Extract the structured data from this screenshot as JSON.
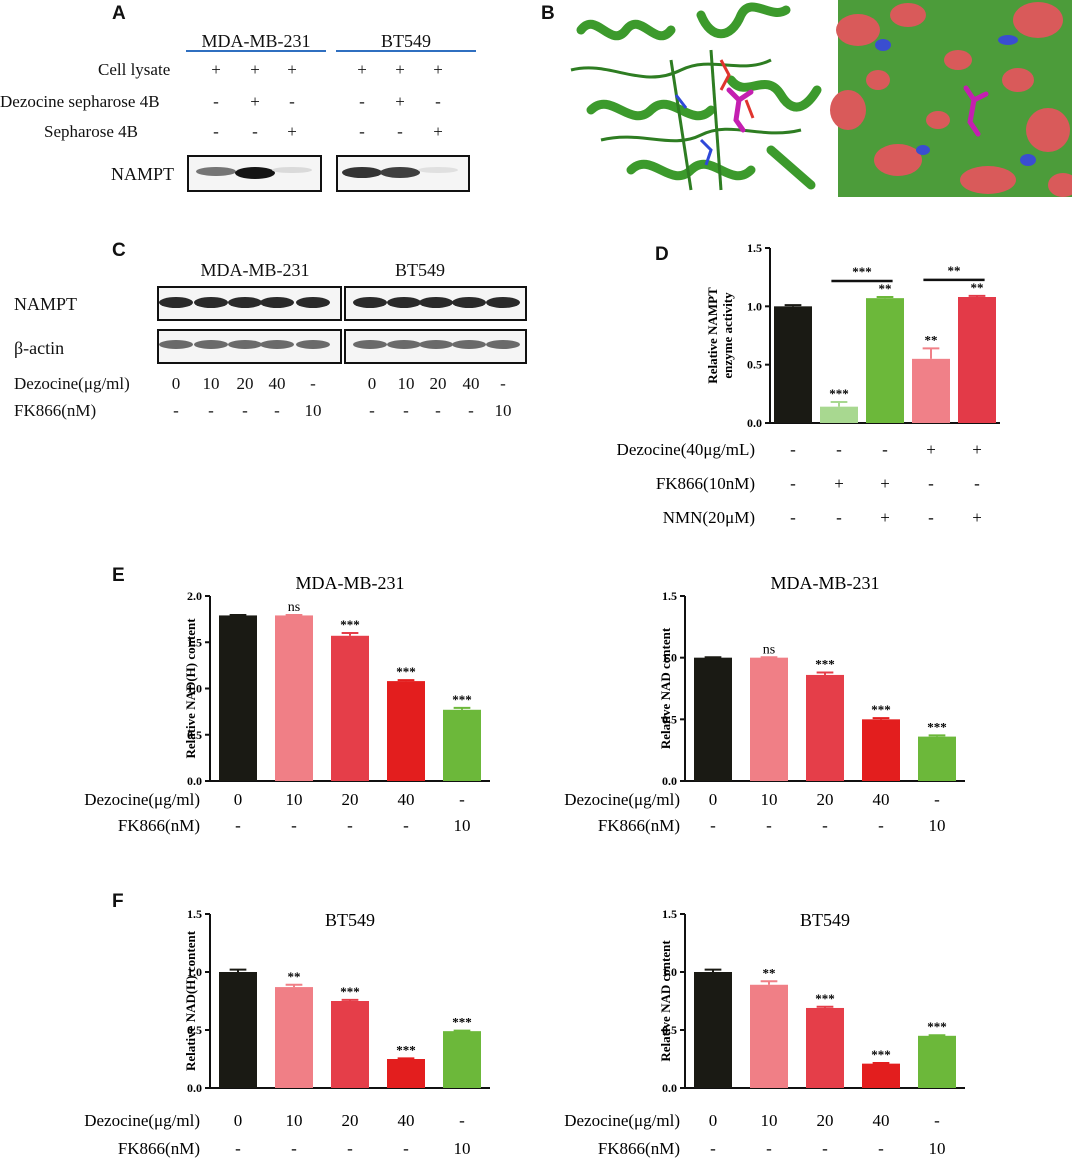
{
  "panels": {
    "a": {
      "label": "A",
      "cell1": "MDA-MB-231",
      "cell2": "BT549",
      "rows": [
        {
          "label": "Cell lysate",
          "marks": [
            "+",
            "+",
            "+",
            "+",
            "+",
            "+"
          ]
        },
        {
          "label": "Dezocine sepharose 4B",
          "marks": [
            "-",
            "+",
            "-",
            "-",
            "+",
            "-"
          ]
        },
        {
          "label": "Sepharose 4B",
          "marks": [
            "-",
            "-",
            "+",
            "-",
            "-",
            "+"
          ]
        }
      ],
      "blot_label": "NAMPT",
      "band_intensity": [
        0.55,
        1.0,
        0.08,
        0.85,
        0.8,
        0.05
      ]
    },
    "b": {
      "label": "B"
    },
    "c": {
      "label": "C",
      "cell1": "MDA-MB-231",
      "cell2": "BT549",
      "blots": [
        "NAMPT",
        "β-actin"
      ],
      "rows": [
        {
          "label": "Dezocine(μg/ml)",
          "marks": [
            "0",
            "10",
            "20",
            "40",
            "-",
            "0",
            "10",
            "20",
            "40",
            "-"
          ]
        },
        {
          "label": "FK866(nM)",
          "marks": [
            "-",
            "-",
            "-",
            "-",
            "10",
            "-",
            "-",
            "-",
            "-",
            "10"
          ]
        }
      ]
    },
    "d": {
      "label": "D"
    },
    "e": {
      "label": "E"
    },
    "f": {
      "label": "F"
    }
  },
  "chart_data": [
    {
      "id": "D",
      "type": "bar",
      "ylabel": "Relative NAMPT enzyme activity",
      "ylabel_lines": [
        "Relative NAMPT",
        "enzyme activity"
      ],
      "ylim": [
        0,
        1.5
      ],
      "yticks": [
        "0.0",
        "0.5",
        "1.0",
        "1.5"
      ],
      "values": [
        1.0,
        0.14,
        1.07,
        0.55,
        1.08
      ],
      "errors": [
        0.01,
        0.04,
        0.01,
        0.09,
        0.01
      ],
      "sig": [
        "",
        "***",
        "**",
        "**",
        "**"
      ],
      "brackets": [
        {
          "from": 1,
          "to": 2,
          "label": "***"
        },
        {
          "from": 3,
          "to": 4,
          "label": "**"
        }
      ],
      "colors": [
        "#1a1a14",
        "#a8d890",
        "#6cb83a",
        "#f08088",
        "#e33a48"
      ],
      "rows": [
        {
          "label": "Dezocine(40μg/mL)",
          "marks": [
            "-",
            "-",
            "-",
            "+",
            "+"
          ]
        },
        {
          "label": "FK866(10nM)",
          "marks": [
            "-",
            "+",
            "+",
            "-",
            "-"
          ]
        },
        {
          "label": "NMN(20μM)",
          "marks": [
            "-",
            "-",
            "+",
            "-",
            "+"
          ]
        }
      ]
    },
    {
      "id": "E1",
      "type": "bar",
      "title": "MDA-MB-231",
      "ylabel": "Relative NAD(H) content",
      "ylim": [
        0,
        2.0
      ],
      "yticks": [
        "0.0",
        "0.5",
        "1.0",
        "1.5",
        "2.0"
      ],
      "values": [
        1.79,
        1.79,
        1.57,
        1.08,
        0.77
      ],
      "errors": [
        0.005,
        0.005,
        0.03,
        0.01,
        0.02
      ],
      "sig": [
        "",
        "ns",
        "***",
        "***",
        "***"
      ],
      "colors": [
        "#1a1a14",
        "#f07f86",
        "#e53e49",
        "#e31e1e",
        "#6cb83a"
      ],
      "rows": [
        {
          "label": "Dezocine(μg/ml)",
          "marks": [
            "0",
            "10",
            "20",
            "40",
            "-"
          ]
        },
        {
          "label": "FK866(nM)",
          "marks": [
            "-",
            "-",
            "-",
            "-",
            "10"
          ]
        }
      ]
    },
    {
      "id": "E2",
      "type": "bar",
      "title": "MDA-MB-231",
      "ylabel": "Relative NAD content",
      "ylim": [
        0,
        1.5
      ],
      "yticks": [
        "0.0",
        "0.5",
        "1.0",
        "1.5"
      ],
      "values": [
        1.0,
        1.0,
        0.86,
        0.5,
        0.36
      ],
      "errors": [
        0.003,
        0.003,
        0.02,
        0.01,
        0.01
      ],
      "sig": [
        "",
        "ns",
        "***",
        "***",
        "***"
      ],
      "colors": [
        "#1a1a14",
        "#f07f86",
        "#e53e49",
        "#e31e1e",
        "#6cb83a"
      ],
      "rows": [
        {
          "label": "Dezocine(μg/ml)",
          "marks": [
            "0",
            "10",
            "20",
            "40",
            "-"
          ]
        },
        {
          "label": "FK866(nM)",
          "marks": [
            "-",
            "-",
            "-",
            "-",
            "10"
          ]
        }
      ]
    },
    {
      "id": "F1",
      "type": "bar",
      "title": "BT549",
      "ylabel": "Relative NAD(H) content",
      "ylim": [
        0,
        1.5
      ],
      "yticks": [
        "0.0",
        "0.5",
        "1.0",
        "1.5"
      ],
      "values": [
        1.0,
        0.87,
        0.75,
        0.25,
        0.49
      ],
      "errors": [
        0.02,
        0.02,
        0.01,
        0.005,
        0.005
      ],
      "sig": [
        "",
        "**",
        "***",
        "***",
        "***"
      ],
      "colors": [
        "#1a1a14",
        "#f07f86",
        "#e53e49",
        "#e31e1e",
        "#6cb83a"
      ],
      "rows": [
        {
          "label": "Dezocine(μg/ml)",
          "marks": [
            "0",
            "10",
            "20",
            "40",
            "-"
          ]
        },
        {
          "label": "FK866(nM)",
          "marks": [
            "-",
            "-",
            "-",
            "-",
            "10"
          ]
        }
      ]
    },
    {
      "id": "F2",
      "type": "bar",
      "title": "BT549",
      "ylabel": "Relative NAD content",
      "ylim": [
        0,
        1.5
      ],
      "yticks": [
        "0.0",
        "0.5",
        "1.0",
        "1.5"
      ],
      "values": [
        1.0,
        0.89,
        0.69,
        0.21,
        0.45
      ],
      "errors": [
        0.02,
        0.03,
        0.01,
        0.005,
        0.005
      ],
      "sig": [
        "",
        "**",
        "***",
        "***",
        "***"
      ],
      "colors": [
        "#1a1a14",
        "#f07f86",
        "#e53e49",
        "#e31e1e",
        "#6cb83a"
      ],
      "rows": [
        {
          "label": "Dezocine(μg/ml)",
          "marks": [
            "0",
            "10",
            "20",
            "40",
            "-"
          ]
        },
        {
          "label": "FK866(nM)",
          "marks": [
            "-",
            "-",
            "-",
            "-",
            "10"
          ]
        }
      ]
    }
  ]
}
